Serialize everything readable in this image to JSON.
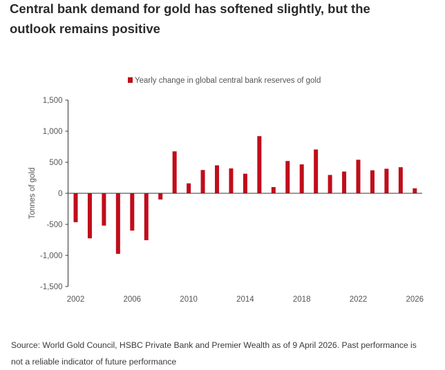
{
  "title": {
    "line1": "Central bank demand for gold has softened slightly, but the",
    "line2": "outlook remains positive"
  },
  "source": {
    "line1": "Source: World Gold Council, HSBC Private Bank and Premier Wealth as of 9 April 2026. Past performance is",
    "line2": "not a reliable indicator of future performance"
  },
  "colors": {
    "bar": "#c00d1a",
    "axis": "#333333",
    "text": "#555555"
  },
  "chart_data": {
    "type": "bar",
    "title": "Central bank demand for gold has softened slightly, but the outlook remains positive",
    "xlabel": "",
    "ylabel": "Tonnes of gold",
    "ylim": [
      -1500,
      1500
    ],
    "yticks": [
      1500,
      1000,
      500,
      0,
      -500,
      -1000,
      -1500
    ],
    "ytick_labels": [
      "1,500",
      "1,000",
      "500",
      "0",
      "-500",
      "-1,000",
      "-1,500"
    ],
    "xtick_labels": [
      "2002",
      "2006",
      "2010",
      "2014",
      "2018",
      "2022",
      "2026"
    ],
    "grid": false,
    "legend": {
      "position": "top-center",
      "entries": [
        "Yearly change in global central bank reserves of gold"
      ]
    },
    "categories": [
      "2002",
      "2003",
      "2004",
      "2005",
      "2006",
      "2007",
      "2008",
      "2009",
      "2010",
      "2011",
      "2012",
      "2013",
      "2014",
      "2015",
      "2016",
      "2017",
      "2018",
      "2019",
      "2020",
      "2021",
      "2022",
      "2023",
      "2024",
      "2025",
      "2026"
    ],
    "series": [
      {
        "name": "Yearly change in global central bank reserves of gold",
        "values": [
          -465,
          -725,
          -520,
          -975,
          -600,
          -755,
          -100,
          675,
          160,
          375,
          450,
          400,
          315,
          920,
          100,
          520,
          465,
          705,
          295,
          350,
          540,
          370,
          395,
          420,
          80
        ]
      }
    ]
  }
}
